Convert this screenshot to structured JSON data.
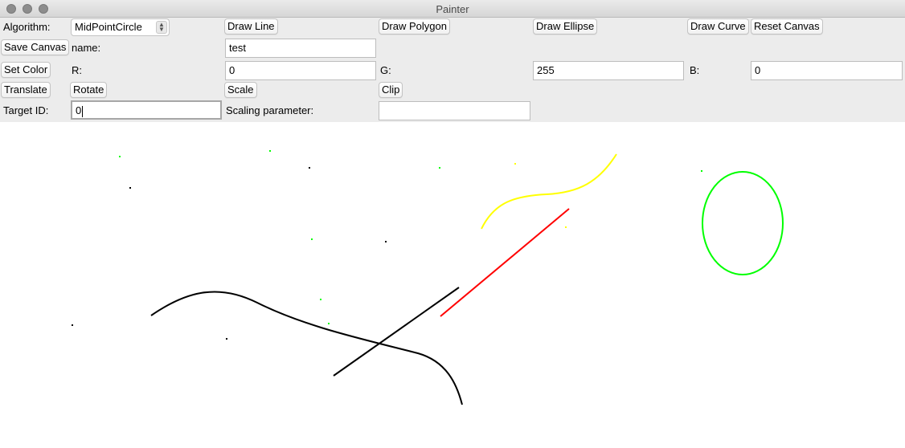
{
  "window": {
    "title": "Painter"
  },
  "row1": {
    "algorithm_label": "Algorithm:",
    "algorithm_value": "MidPointCircle",
    "draw_line": "Draw Line",
    "draw_polygon": "Draw Polygon",
    "draw_ellipse": "Draw Ellipse",
    "draw_curve": "Draw Curve",
    "reset_canvas": "Reset Canvas"
  },
  "row2": {
    "save_canvas": "Save Canvas",
    "name_label": "name:",
    "name_value": "test"
  },
  "row3": {
    "set_color": "Set Color",
    "r_label": "R:",
    "r_value": "0",
    "g_label": "G:",
    "g_value": "255",
    "b_label": "B:",
    "b_value": "0"
  },
  "row4": {
    "translate": "Translate",
    "rotate": "Rotate",
    "scale": "Scale",
    "clip": "Clip"
  },
  "row5": {
    "target_id_label": "Target ID:",
    "target_id_value": "0",
    "scaling_label": "Scaling parameter:",
    "scaling_value": ""
  },
  "colors": {
    "black": "#000000",
    "red": "#ff0000",
    "green": "#00ff00",
    "yellow": "#ffff00"
  }
}
